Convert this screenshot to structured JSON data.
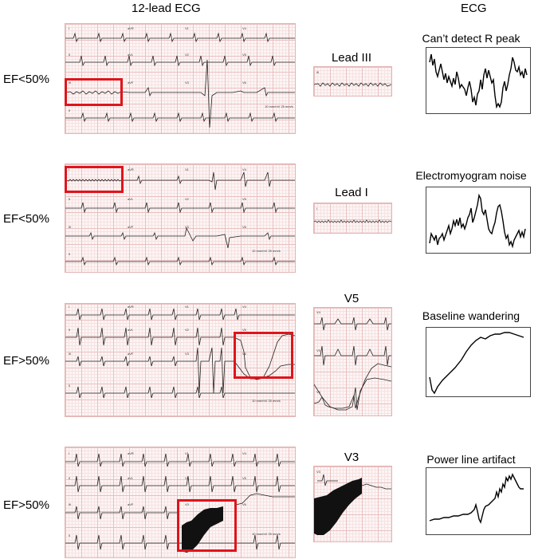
{
  "headers": {
    "left": "12-lead ECG",
    "right": "ECG"
  },
  "rows": [
    {
      "ef": "EF<50%",
      "lead": "Lead III",
      "issue": "Can’t detect R peak"
    },
    {
      "ef": "EF<50%",
      "lead": "Lead I",
      "issue": "Electromyogram noise"
    },
    {
      "ef": "EF>50%",
      "lead": "V5",
      "issue": "Baseline wandering"
    },
    {
      "ef": "EF>50%",
      "lead": "V3",
      "issue": "Power line artifact"
    }
  ]
}
